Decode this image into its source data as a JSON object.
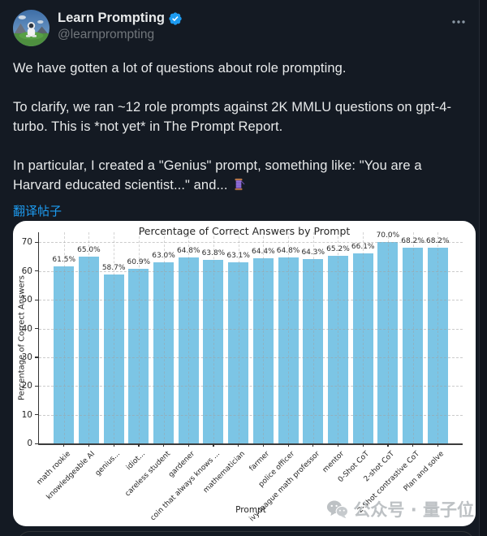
{
  "page": {
    "background": "#141a23",
    "column_border": "#262c35"
  },
  "tweet": {
    "author": "Learn Prompting",
    "handle": "@learnprompting",
    "paragraphs": [
      "We have gotten a lot of questions about role prompting.",
      "To clarify, we ran ~12 role prompts against 2K MMLU questions on gpt-4-turbo. This is *not yet* in The Prompt Report.",
      "In particular, I created a \"Genius\" prompt, something like: \"You are a Harvard educated scientist...\" and..."
    ],
    "thread_emoji": "🧵",
    "translate_link": "翻译帖子",
    "icons": {
      "avatar": "astronaut-avatar",
      "verified": "verified-badge-icon",
      "more": "more-options-icon",
      "thread": "thread-spool-icon"
    }
  },
  "chart_data": {
    "type": "bar",
    "title": "Percentage of Correct Answers by Prompt",
    "xlabel": "Prompt",
    "ylabel": "Percentage of Correct Answers",
    "categories": [
      "math rookie",
      "knowledgeable AI",
      "genius...",
      "idiot...",
      "careless student",
      "gardener",
      "coin that always knows ...",
      "mathematician",
      "farmer",
      "police officer",
      "ivy league math professor",
      "mentor",
      "0-Shot CoT",
      "2-shot CoT",
      "2-Shot contrastive CoT",
      "Plan and solve"
    ],
    "values": [
      61.5,
      65.0,
      58.7,
      60.9,
      63.0,
      64.8,
      63.8,
      63.1,
      64.4,
      64.8,
      64.3,
      65.2,
      66.1,
      70.0,
      68.2,
      68.2
    ],
    "bar_labels": [
      "61.5%",
      "65.0%",
      "58.7%",
      "60.9%",
      "63.0%",
      "64.8%",
      "63.8%",
      "63.1%",
      "64.4%",
      "64.8%",
      "64.3%",
      "65.2%",
      "66.1%",
      "70.0%",
      "68.2%",
      "68.2%"
    ],
    "yticks": [
      0,
      10,
      20,
      30,
      40,
      50,
      60,
      70
    ],
    "ylim": [
      0,
      73.5
    ],
    "grid": true,
    "legend_position": "none",
    "bar_color": "#7cc5e5",
    "watermark": {
      "icon": "wechat-icon",
      "text": "公众号 · 量子位"
    }
  },
  "colors": {
    "accent": "#1d9bf0",
    "text_primary": "#e7e9ea",
    "text_secondary": "#71767b",
    "card_bg": "#ffffff",
    "chart_text": "#262626"
  }
}
